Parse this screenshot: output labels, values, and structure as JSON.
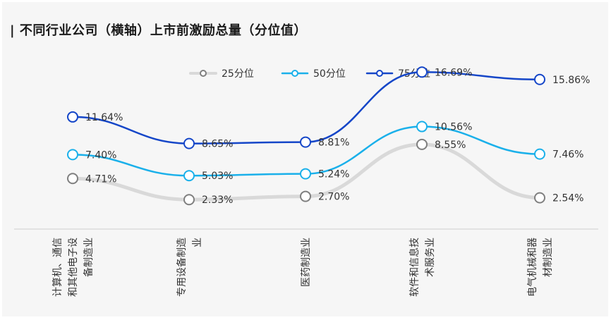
{
  "chart_data": {
    "type": "line",
    "title": "| 不同行业公司（横轴）上市前激励总量（分位值）",
    "categories": [
      [
        "计算机、通信",
        "和其他电子设",
        "备制造业"
      ],
      [
        "专用设备制造",
        "业"
      ],
      [
        "医药制造业"
      ],
      [
        "软件和信息技",
        "术服务业"
      ],
      [
        "电气机械和器",
        "材制造业"
      ]
    ],
    "series": [
      {
        "name": "25分位",
        "values": [
          4.71,
          2.33,
          2.7,
          8.55,
          2.54
        ],
        "labels": [
          "4.71%",
          "2.33%",
          "2.70%",
          "8.55%",
          "2.54%"
        ],
        "color": "#7f7f7f",
        "line_color": "#d9d9d9"
      },
      {
        "name": "50分位",
        "values": [
          7.4,
          5.03,
          5.24,
          10.56,
          7.46
        ],
        "labels": [
          "7.40%",
          "5.03%",
          "5.24%",
          "10.56%",
          "7.46%"
        ],
        "color": "#1ab0ea",
        "line_color": "#1ab0ea"
      },
      {
        "name": "75分位",
        "values": [
          11.64,
          8.65,
          8.81,
          16.69,
          15.86
        ],
        "labels": [
          "11.64%",
          "8.65%",
          "8.81%",
          "16.69%",
          "15.86%"
        ],
        "color": "#1546c8",
        "line_color": "#1546c8"
      }
    ],
    "legend_position": "top-center",
    "grid": false
  }
}
